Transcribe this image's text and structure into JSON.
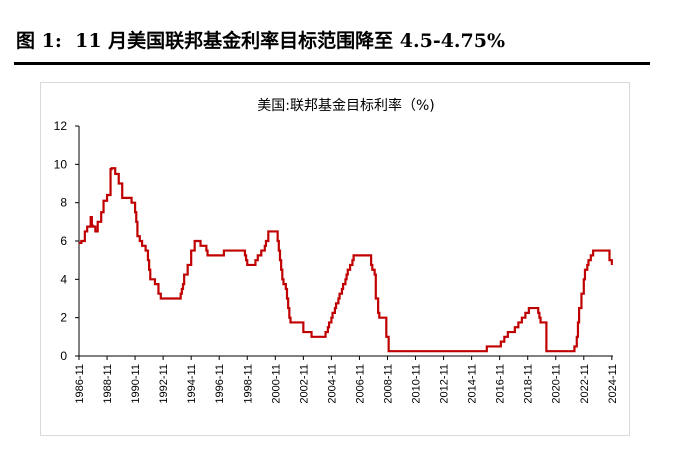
{
  "figure": {
    "label": "图 1:",
    "title": "11 月美国联邦基金利率目标范围降至 4.5-4.75%"
  },
  "colors": {
    "series": "#c00000",
    "axis": "#000000",
    "frame": "#d9d9d9"
  },
  "chart_data": {
    "type": "line",
    "title": "美国:联邦基金目标利率（%)",
    "xlabel": "",
    "ylabel": "",
    "ylim": [
      0,
      12
    ],
    "yticks": [
      0,
      2,
      4,
      6,
      8,
      10,
      12
    ],
    "xlim": [
      "1986-11",
      "2024-12"
    ],
    "xticks": [
      "1986-11",
      "1988-11",
      "1990-11",
      "1992-11",
      "1994-11",
      "1996-11",
      "1998-11",
      "2000-11",
      "2002-11",
      "2004-11",
      "2006-11",
      "2008-11",
      "2010-11",
      "2012-11",
      "2014-11",
      "2016-11",
      "2018-11",
      "2020-11",
      "2022-11",
      "2024-11"
    ],
    "grid": false,
    "legend": "none",
    "series": [
      {
        "points": [
          [
            "1986-11",
            5.9
          ],
          [
            "1987-01",
            6.0
          ],
          [
            "1987-04",
            6.5
          ],
          [
            "1987-06",
            6.75
          ],
          [
            "1987-09",
            7.25
          ],
          [
            "1987-10",
            6.8
          ],
          [
            "1987-11",
            6.75
          ],
          [
            "1988-01",
            6.5
          ],
          [
            "1988-03",
            7.0
          ],
          [
            "1988-06",
            7.5
          ],
          [
            "1988-08",
            8.1
          ],
          [
            "1988-11",
            8.4
          ],
          [
            "1989-02",
            9.75
          ],
          [
            "1989-03",
            9.8
          ],
          [
            "1989-06",
            9.5
          ],
          [
            "1989-09",
            9.0
          ],
          [
            "1989-12",
            8.25
          ],
          [
            "1990-06",
            8.25
          ],
          [
            "1990-08",
            8.0
          ],
          [
            "1990-11",
            7.5
          ],
          [
            "1990-12",
            7.0
          ],
          [
            "1991-01",
            6.25
          ],
          [
            "1991-03",
            6.0
          ],
          [
            "1991-05",
            5.75
          ],
          [
            "1991-08",
            5.5
          ],
          [
            "1991-10",
            5.0
          ],
          [
            "1991-11",
            4.5
          ],
          [
            "1991-12",
            4.0
          ],
          [
            "1992-04",
            3.75
          ],
          [
            "1992-07",
            3.25
          ],
          [
            "1992-09",
            3.0
          ],
          [
            "1994-01",
            3.0
          ],
          [
            "1994-02",
            3.25
          ],
          [
            "1994-03",
            3.5
          ],
          [
            "1994-04",
            3.75
          ],
          [
            "1994-05",
            4.25
          ],
          [
            "1994-08",
            4.75
          ],
          [
            "1994-11",
            5.5
          ],
          [
            "1995-02",
            6.0
          ],
          [
            "1995-07",
            5.75
          ],
          [
            "1995-12",
            5.5
          ],
          [
            "1996-01",
            5.25
          ],
          [
            "1997-03",
            5.5
          ],
          [
            "1998-09",
            5.25
          ],
          [
            "1998-10",
            5.0
          ],
          [
            "1998-11",
            4.75
          ],
          [
            "1999-06",
            5.0
          ],
          [
            "1999-08",
            5.25
          ],
          [
            "1999-11",
            5.5
          ],
          [
            "2000-02",
            5.75
          ],
          [
            "2000-03",
            6.0
          ],
          [
            "2000-05",
            6.5
          ],
          [
            "2001-01",
            6.0
          ],
          [
            "2001-02",
            5.5
          ],
          [
            "2001-03",
            5.0
          ],
          [
            "2001-04",
            4.5
          ],
          [
            "2001-05",
            4.0
          ],
          [
            "2001-06",
            3.75
          ],
          [
            "2001-08",
            3.5
          ],
          [
            "2001-09",
            3.0
          ],
          [
            "2001-10",
            2.5
          ],
          [
            "2001-11",
            2.0
          ],
          [
            "2001-12",
            1.75
          ],
          [
            "2002-11",
            1.25
          ],
          [
            "2003-06",
            1.0
          ],
          [
            "2004-06",
            1.25
          ],
          [
            "2004-08",
            1.5
          ],
          [
            "2004-09",
            1.75
          ],
          [
            "2004-11",
            2.0
          ],
          [
            "2004-12",
            2.25
          ],
          [
            "2005-02",
            2.5
          ],
          [
            "2005-03",
            2.75
          ],
          [
            "2005-05",
            3.0
          ],
          [
            "2005-06",
            3.25
          ],
          [
            "2005-08",
            3.5
          ],
          [
            "2005-09",
            3.75
          ],
          [
            "2005-11",
            4.0
          ],
          [
            "2005-12",
            4.25
          ],
          [
            "2006-01",
            4.5
          ],
          [
            "2006-03",
            4.75
          ],
          [
            "2006-05",
            5.0
          ],
          [
            "2006-06",
            5.25
          ],
          [
            "2007-09",
            4.75
          ],
          [
            "2007-10",
            4.5
          ],
          [
            "2007-12",
            4.25
          ],
          [
            "2008-01",
            3.0
          ],
          [
            "2008-03",
            2.25
          ],
          [
            "2008-04",
            2.0
          ],
          [
            "2008-10",
            1.0
          ],
          [
            "2008-12",
            0.25
          ],
          [
            "2015-12",
            0.5
          ],
          [
            "2016-12",
            0.75
          ],
          [
            "2017-03",
            1.0
          ],
          [
            "2017-06",
            1.25
          ],
          [
            "2017-12",
            1.5
          ],
          [
            "2018-03",
            1.75
          ],
          [
            "2018-06",
            2.0
          ],
          [
            "2018-09",
            2.25
          ],
          [
            "2018-12",
            2.5
          ],
          [
            "2019-08",
            2.25
          ],
          [
            "2019-09",
            2.0
          ],
          [
            "2019-10",
            1.75
          ],
          [
            "2020-03",
            0.25
          ],
          [
            "2022-03",
            0.5
          ],
          [
            "2022-05",
            1.0
          ],
          [
            "2022-06",
            1.75
          ],
          [
            "2022-07",
            2.5
          ],
          [
            "2022-09",
            3.25
          ],
          [
            "2022-11",
            4.0
          ],
          [
            "2022-12",
            4.5
          ],
          [
            "2023-02",
            4.75
          ],
          [
            "2023-03",
            5.0
          ],
          [
            "2023-05",
            5.25
          ],
          [
            "2023-07",
            5.5
          ],
          [
            "2024-09",
            5.0
          ],
          [
            "2024-11",
            4.75
          ]
        ]
      }
    ]
  }
}
